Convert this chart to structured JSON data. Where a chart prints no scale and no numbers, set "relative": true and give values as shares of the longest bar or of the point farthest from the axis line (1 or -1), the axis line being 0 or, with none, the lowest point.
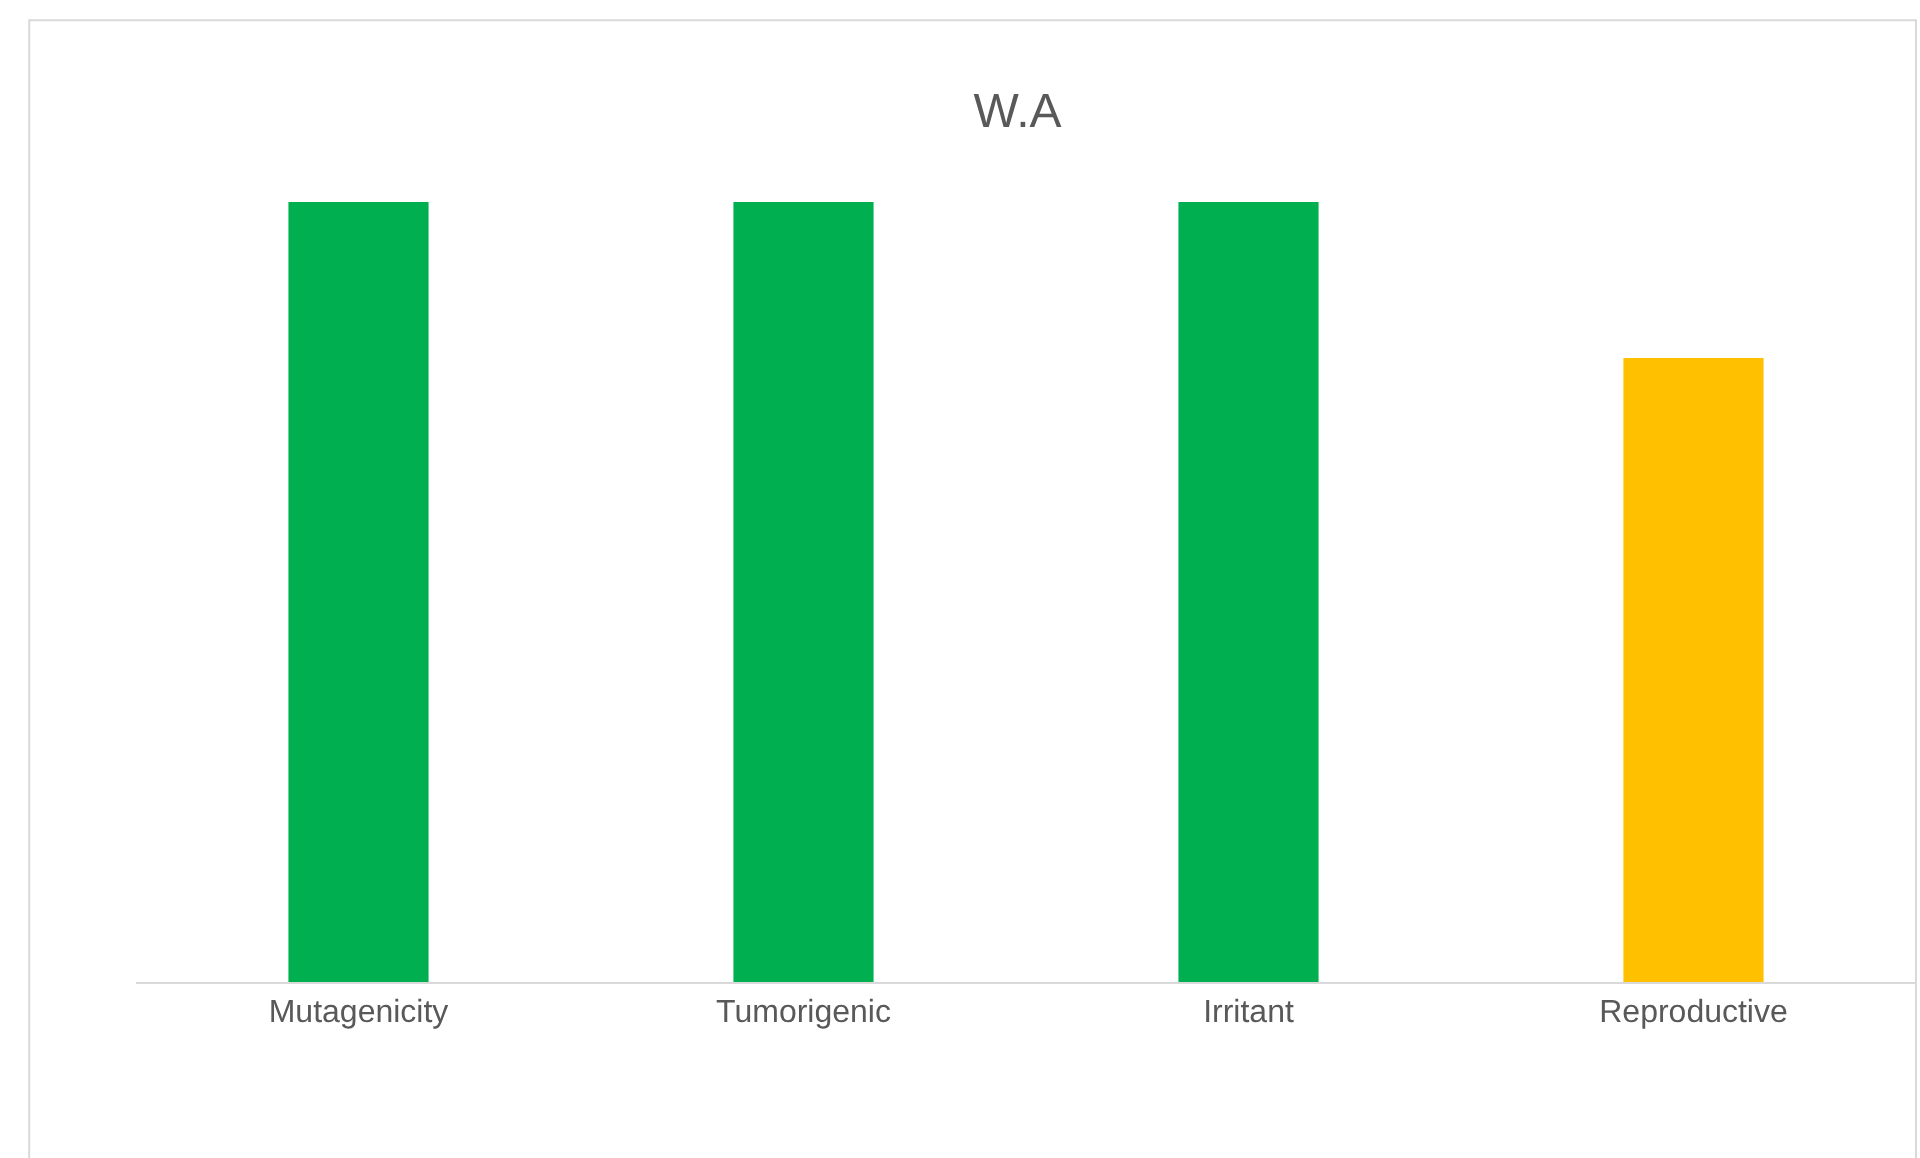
{
  "chart_data": {
    "type": "bar",
    "title": "W.A",
    "categories": [
      "Mutagenicity",
      "Tumorigenic",
      "Irritant",
      "Reproductive"
    ],
    "values": [
      1,
      1,
      1,
      0.8
    ],
    "colors": [
      "#00b050",
      "#00b050",
      "#00b050",
      "#ffc000"
    ],
    "relative": true,
    "legend": false
  }
}
